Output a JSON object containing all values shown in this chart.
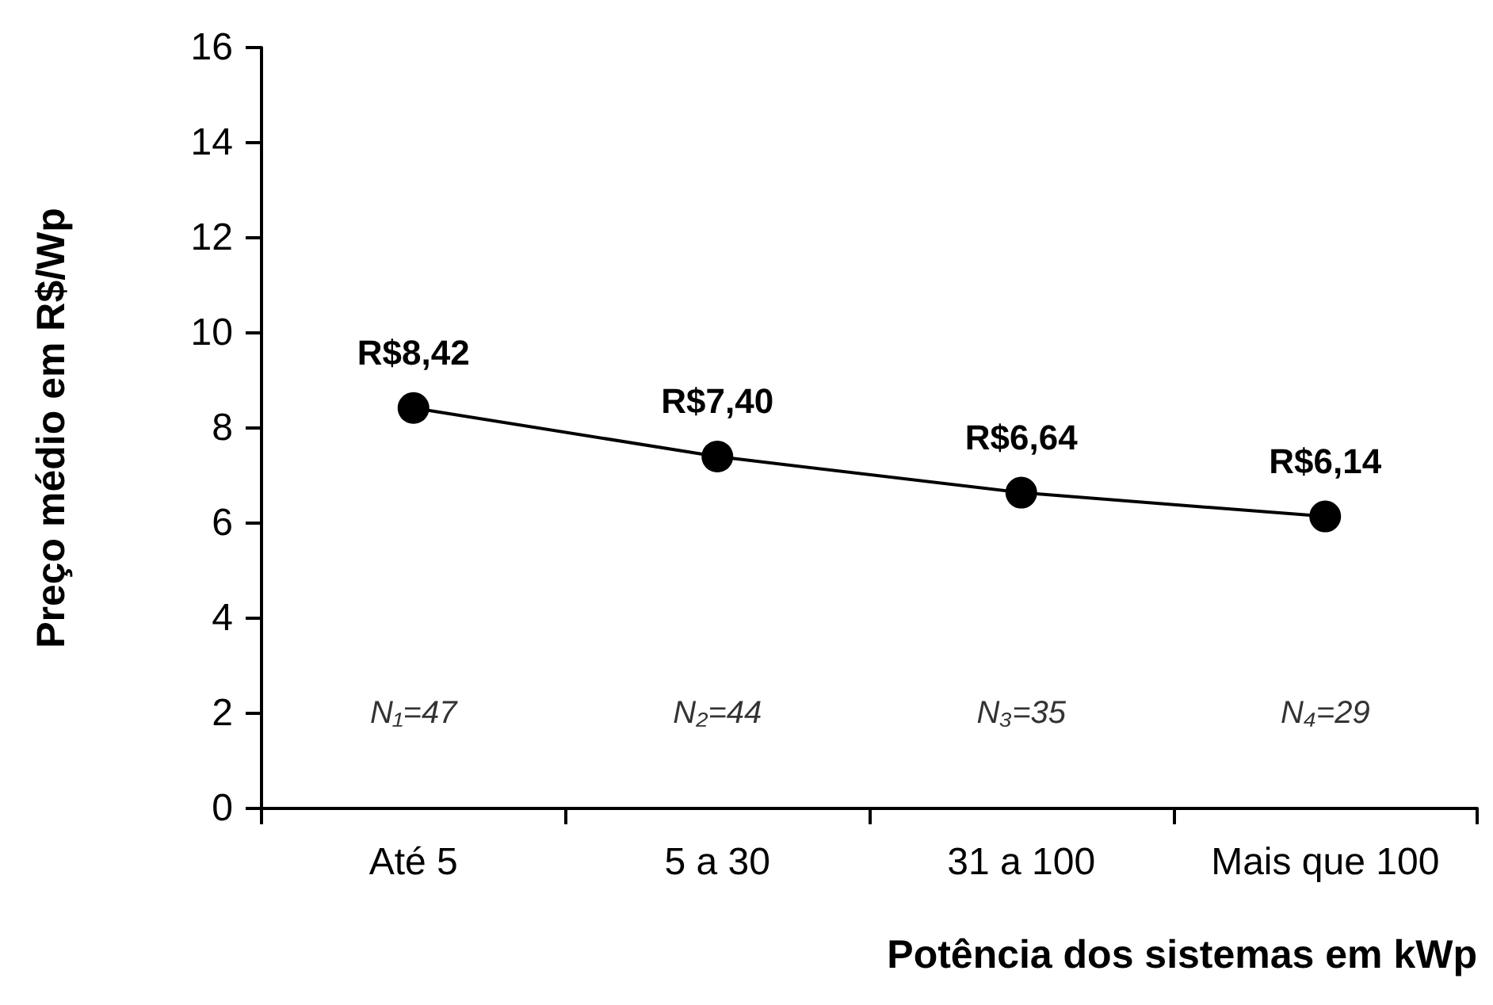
{
  "chart_data": {
    "type": "line",
    "xlabel": "Potência dos sistemas em kWp",
    "ylabel": "Preço médio em R$/Wp",
    "categories": [
      "Até 5",
      "5 a 30",
      "31 a 100",
      "Mais que 100"
    ],
    "series": [
      {
        "color": "#000000",
        "values": [
          8.42,
          7.4,
          6.64,
          6.14
        ],
        "value_labels": [
          "R$8,42",
          "R$7,40",
          "R$6,64",
          "R$6,14"
        ]
      }
    ],
    "ylim": [
      0,
      16
    ],
    "yticks": [
      0,
      2,
      4,
      6,
      8,
      10,
      12,
      14,
      16
    ],
    "grid": false,
    "marker": "circle",
    "line_style": "solid",
    "annotations": [
      "N₁=47",
      "N₂=44",
      "N₃=35",
      "N₄=29"
    ]
  }
}
